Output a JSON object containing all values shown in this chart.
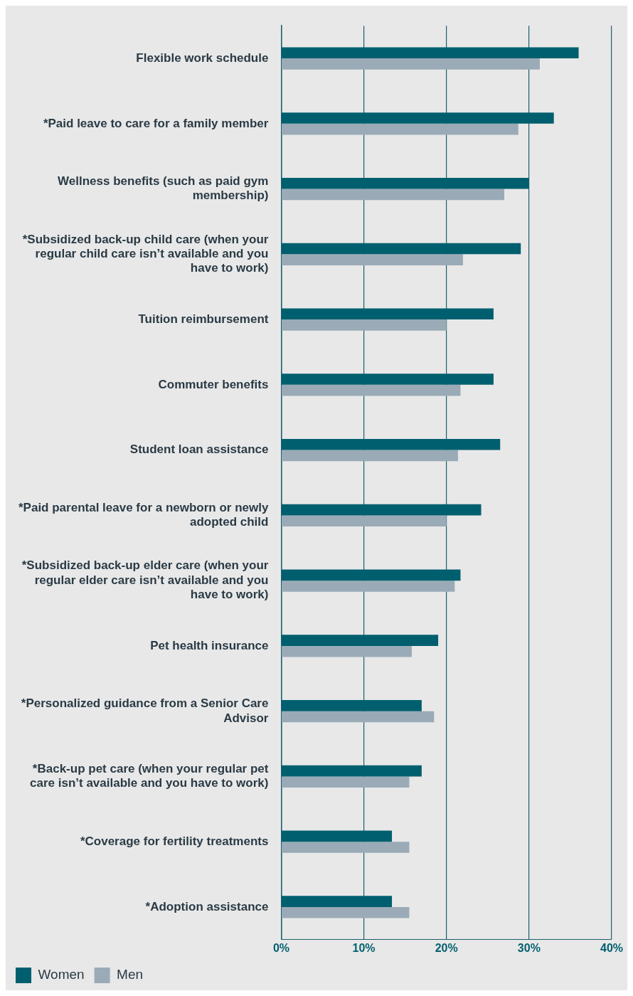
{
  "chart_data": {
    "type": "bar",
    "orientation": "horizontal",
    "categories": [
      "Flexible work schedule",
      "*Paid leave to care for a family member",
      "Wellness benefits (such as paid gym membership)",
      "*Subsidized back-up child care (when your regular child care isn’t available and you have to work)",
      "Tuition reimbursement",
      "Commuter benefits",
      "Student loan assistance",
      "*Paid parental leave for a newborn or newly adopted child",
      "*Subsidized back-up elder care (when your regular elder care isn’t available and you have to work)",
      "Pet health insurance",
      "*Personalized guidance from a Senior Care Advisor",
      "*Back-up pet care (when your regular pet care isn’t available and you have to work)",
      "*Coverage for fertility treatments",
      "*Adoption assistance"
    ],
    "series": [
      {
        "name": "Women",
        "color": "#005f6e",
        "values": [
          36,
          33,
          30,
          29,
          25.7,
          25.7,
          26.5,
          24.2,
          21.7,
          19,
          17,
          17,
          13.4,
          13.4
        ]
      },
      {
        "name": "Men",
        "color": "#9aabb7",
        "values": [
          31.3,
          28.7,
          27,
          22,
          20,
          21.7,
          21.4,
          20,
          21,
          15.8,
          18.5,
          15.5,
          15.5,
          15.5
        ]
      }
    ],
    "xlim": [
      0,
      40
    ],
    "xticks": [
      {
        "value": 0,
        "label": "0%"
      },
      {
        "value": 10,
        "label": "10%"
      },
      {
        "value": 20,
        "label": "20%"
      },
      {
        "value": 30,
        "label": "30%"
      },
      {
        "value": 40,
        "label": "40%"
      }
    ],
    "grid": "x",
    "legend": "bottom left"
  }
}
